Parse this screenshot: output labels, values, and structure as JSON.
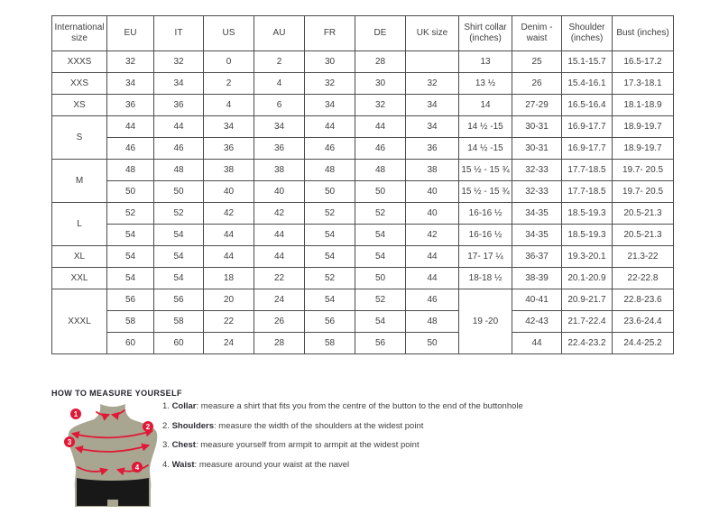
{
  "table": {
    "headers": [
      "International size",
      "EU",
      "IT",
      "US",
      "AU",
      "FR",
      "DE",
      "UK size",
      "Shirt collar (inches)",
      "Denim - waist",
      "Shoulder (inches)",
      "Bust (inches)"
    ],
    "groups": [
      {
        "size": "XXXS",
        "rows": [
          [
            "32",
            "32",
            "0",
            "2",
            "30",
            "28",
            "",
            "13",
            "25",
            "15.1-15.7",
            "16.5-17.2"
          ]
        ]
      },
      {
        "size": "XXS",
        "rows": [
          [
            "34",
            "34",
            "2",
            "4",
            "32",
            "30",
            "32",
            "13 ½",
            "26",
            "15.4-16.1",
            "17.3-18.1"
          ]
        ]
      },
      {
        "size": "XS",
        "rows": [
          [
            "36",
            "36",
            "4",
            "6",
            "34",
            "32",
            "34",
            "14",
            "27-29",
            "16.5-16.4",
            "18.1-18.9"
          ]
        ]
      },
      {
        "size": "S",
        "rows": [
          [
            "44",
            "44",
            "34",
            "34",
            "44",
            "44",
            "34",
            "14 ½ -15",
            "30-31",
            "16.9-17.7",
            "18.9-19.7"
          ],
          [
            "46",
            "46",
            "36",
            "36",
            "46",
            "46",
            "36",
            "14 ½ -15",
            "30-31",
            "16.9-17.7",
            "18.9-19.7"
          ]
        ]
      },
      {
        "size": "M",
        "rows": [
          [
            "48",
            "48",
            "38",
            "38",
            "48",
            "48",
            "38",
            "15 ½ - 15 ¾",
            "32-33",
            "17.7-18.5",
            "19.7- 20.5"
          ],
          [
            "50",
            "50",
            "40",
            "40",
            "50",
            "50",
            "40",
            "15 ½ - 15 ¾",
            "32-33",
            "17.7-18.5",
            "19.7- 20.5"
          ]
        ]
      },
      {
        "size": "L",
        "rows": [
          [
            "52",
            "52",
            "42",
            "42",
            "52",
            "52",
            "40",
            "16-16 ½",
            "34-35",
            "18.5-19.3",
            "20.5-21.3"
          ],
          [
            "54",
            "54",
            "44",
            "44",
            "54",
            "54",
            "42",
            "16-16 ½",
            "34-35",
            "18.5-19.3",
            "20.5-21.3"
          ]
        ]
      },
      {
        "size": "XL",
        "rows": [
          [
            "54",
            "54",
            "44",
            "44",
            "54",
            "54",
            "44",
            "17- 17 ¼",
            "36-37",
            "19.3-20.1",
            "21.3-22"
          ]
        ]
      },
      {
        "size": "XXL",
        "rows": [
          [
            "54",
            "54",
            "18",
            "22",
            "52",
            "50",
            "44",
            "18-18 ½",
            "38-39",
            "20.1-20.9",
            "22-22.8"
          ]
        ]
      },
      {
        "size": "XXXL",
        "merged": {
          "col": 7,
          "span": 3
        },
        "rows": [
          [
            "56",
            "56",
            "20",
            "24",
            "54",
            "52",
            "46",
            "19 -20",
            "40-41",
            "20.9-21.7",
            "22.8-23.6"
          ],
          [
            "58",
            "58",
            "22",
            "26",
            "56",
            "54",
            "48",
            null,
            "42-43",
            "21.7-22.4",
            "23.6-24.4"
          ],
          [
            "60",
            "60",
            "24",
            "28",
            "58",
            "56",
            "50",
            null,
            "44",
            "22.4-23.2",
            "24.4-25.2"
          ]
        ]
      }
    ]
  },
  "measure": {
    "heading": "HOW TO MEASURE YOURSELF",
    "badges": [
      "1",
      "2",
      "3",
      "4"
    ],
    "steps": [
      {
        "num": "1.",
        "label": "Collar",
        "text": "measure a shirt that fits you from the centre of the button to the end of the buttonhole"
      },
      {
        "num": "2.",
        "label": "Shoulders",
        "text": "measure the width of the shoulders at the widest point"
      },
      {
        "num": "3.",
        "label": "Chest",
        "text": "measure yourself from armpit to armpit at the widest point"
      },
      {
        "num": "4.",
        "label": "Waist",
        "text": "measure around your waist at the navel"
      }
    ]
  },
  "colors": {
    "accent_red": "#e11837",
    "mannequin_olive": "#a8a690",
    "shorts_black": "#181818",
    "table_border": "#4c4c4c",
    "text": "#3e3e3e"
  }
}
